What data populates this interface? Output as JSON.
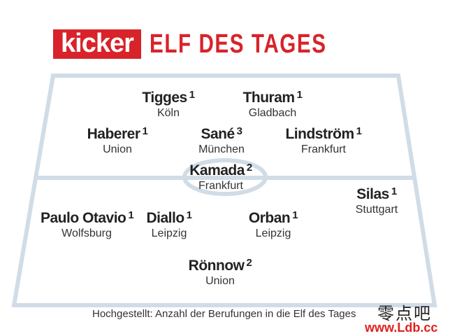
{
  "header": {
    "logo_text": "kicker",
    "title": "ELF DES TAGES",
    "brand_color": "#d8232a"
  },
  "field": {
    "line_color": "#d0dce6",
    "players": [
      {
        "name": "Tigges",
        "count": "1",
        "club": "Köln"
      },
      {
        "name": "Thuram",
        "count": "1",
        "club": "Gladbach"
      },
      {
        "name": "Haberer",
        "count": "1",
        "club": "Union"
      },
      {
        "name": "Sané",
        "count": "3",
        "club": "München"
      },
      {
        "name": "Lindström",
        "count": "1",
        "club": "Frankfurt"
      },
      {
        "name": "Kamada",
        "count": "2",
        "club": "Frankfurt"
      },
      {
        "name": "Silas",
        "count": "1",
        "club": "Stuttgart"
      },
      {
        "name": "Paulo Otavio",
        "count": "1",
        "club": "Wolfsburg"
      },
      {
        "name": "Diallo",
        "count": "1",
        "club": "Leipzig"
      },
      {
        "name": "Orban",
        "count": "1",
        "club": "Leipzig"
      },
      {
        "name": "Rönnow",
        "count": "2",
        "club": "Union"
      }
    ]
  },
  "footnote": "Hochgestellt: Anzahl der Berufungen in die Elf des Tages",
  "watermark": {
    "chinese": "零点吧",
    "url": "www.Ldb.cc"
  }
}
